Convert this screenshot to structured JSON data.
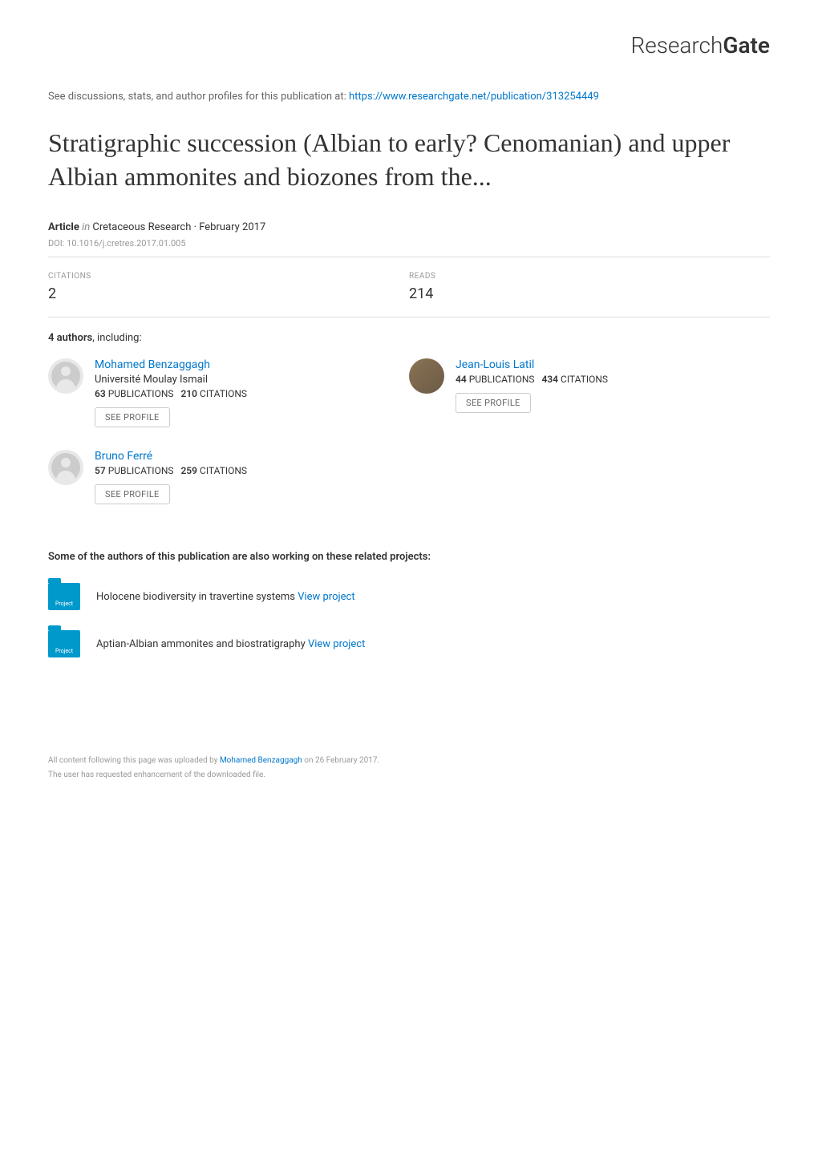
{
  "brand": {
    "logo_light": "Research",
    "logo_bold": "Gate"
  },
  "discussions": {
    "prefix": "See discussions, stats, and author profiles for this publication at: ",
    "url_text": "https://www.researchgate.net/publication/313254449"
  },
  "title": "Stratigraphic succession (Albian to early? Cenomanian) and upper Albian ammonites and biozones from the...",
  "article_meta": {
    "type_label": "Article",
    "in_label": "in",
    "journal": "Cretaceous Research · February 2017",
    "doi": "DOI: 10.1016/j.cretres.2017.01.005"
  },
  "stats": {
    "citations_label": "CITATIONS",
    "citations_value": "2",
    "reads_label": "READS",
    "reads_value": "214"
  },
  "authors_heading_prefix": "4 authors",
  "authors_heading_suffix": ", including:",
  "authors": [
    {
      "name": "Mohamed Benzaggagh",
      "affiliation": "Université Moulay Ismail",
      "pubs_count": "63",
      "pubs_label": "PUBLICATIONS",
      "cits_count": "210",
      "cits_label": "CITATIONS",
      "has_photo": false
    },
    {
      "name": "Jean-Louis Latil",
      "affiliation": "",
      "pubs_count": "44",
      "pubs_label": "PUBLICATIONS",
      "cits_count": "434",
      "cits_label": "CITATIONS",
      "has_photo": true
    },
    {
      "name": "Bruno Ferré",
      "affiliation": "",
      "pubs_count": "57",
      "pubs_label": "PUBLICATIONS",
      "cits_count": "259",
      "cits_label": "CITATIONS",
      "has_photo": false
    }
  ],
  "see_profile_label": "SEE PROFILE",
  "projects_heading": "Some of the authors of this publication are also working on these related projects:",
  "project_icon_label": "Project",
  "projects": [
    {
      "text": "Holocene biodiversity in travertine systems ",
      "link_text": "View project"
    },
    {
      "text": "Aptian-Albian ammonites and biostratigraphy ",
      "link_text": "View project"
    }
  ],
  "footer": {
    "line1_prefix": "All content following this page was uploaded by ",
    "line1_author": "Mohamed Benzaggagh",
    "line1_suffix": " on 26 February 2017.",
    "line2": "The user has requested enhancement of the downloaded file."
  },
  "colors": {
    "link": "#0077cc",
    "text": "#333333",
    "muted": "#999999",
    "border": "#dddddd",
    "project_icon": "#0099cc"
  }
}
